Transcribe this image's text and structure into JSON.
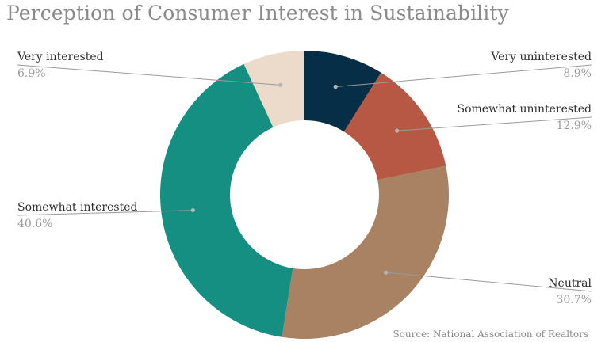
{
  "chart_data": {
    "type": "pie",
    "title": "Perception of Consumer Interest in Sustainability",
    "donut": true,
    "slices": [
      {
        "label": "Very uninterested",
        "value": 8.9,
        "display": "8.9%",
        "color": "#062f47"
      },
      {
        "label": "Somewhat uninterested",
        "value": 12.9,
        "display": "12.9%",
        "color": "#b75845"
      },
      {
        "label": "Neutral",
        "value": 30.7,
        "display": "30.7%",
        "color": "#a98263"
      },
      {
        "label": "Somewhat interested",
        "value": 40.6,
        "display": "40.6%",
        "color": "#168f83"
      },
      {
        "label": "Very interested",
        "value": 6.9,
        "display": "6.9%",
        "color": "#ecdbcb"
      }
    ],
    "source": "Source: National Association of Realtors"
  }
}
